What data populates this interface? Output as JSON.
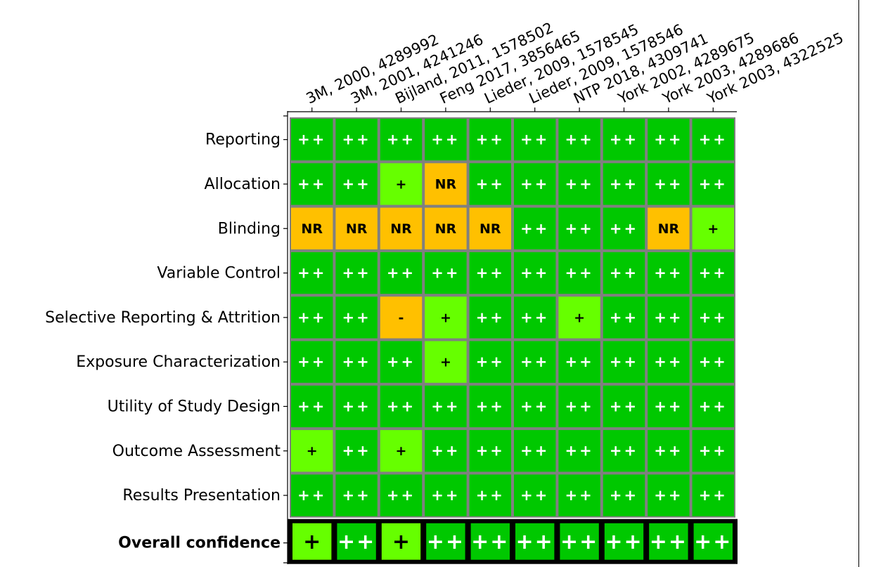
{
  "chart_data": {
    "type": "heatmap",
    "title": "",
    "xlabel": "",
    "ylabel": "",
    "columns": [
      "3M, 2000, 4289992",
      "3M, 2001, 4241246",
      "Bijland, 2011, 1578502",
      "Feng 2017, 3856465",
      "Lieder, 2009, 1578545",
      "Lieder, 2009, 1578546",
      "NTP 2018, 4309741",
      "York 2002, 4289675",
      "York 2003, 4289686",
      "York 2003, 4322525"
    ],
    "rows": [
      "Reporting",
      "Allocation",
      "Blinding",
      "Variable Control",
      "Selective Reporting & Attrition",
      "Exposure Characterization",
      "Utility of Study Design",
      "Outcome Assessment",
      "Results Presentation"
    ],
    "values": [
      [
        "++",
        "++",
        "++",
        "++",
        "++",
        "++",
        "++",
        "++",
        "++",
        "++"
      ],
      [
        "++",
        "++",
        "+",
        "NR",
        "++",
        "++",
        "++",
        "++",
        "++",
        "++"
      ],
      [
        "NR",
        "NR",
        "NR",
        "NR",
        "NR",
        "++",
        "++",
        "++",
        "NR",
        "+"
      ],
      [
        "++",
        "++",
        "++",
        "++",
        "++",
        "++",
        "++",
        "++",
        "++",
        "++"
      ],
      [
        "++",
        "++",
        "-",
        "+",
        "++",
        "++",
        "+",
        "++",
        "++",
        "++"
      ],
      [
        "++",
        "++",
        "++",
        "+",
        "++",
        "++",
        "++",
        "++",
        "++",
        "++"
      ],
      [
        "++",
        "++",
        "++",
        "++",
        "++",
        "++",
        "++",
        "++",
        "++",
        "++"
      ],
      [
        "+",
        "++",
        "+",
        "++",
        "++",
        "++",
        "++",
        "++",
        "++",
        "++"
      ],
      [
        "++",
        "++",
        "++",
        "++",
        "++",
        "++",
        "++",
        "++",
        "++",
        "++"
      ]
    ],
    "overall": {
      "label": "Overall confidence",
      "values": [
        "+",
        "++",
        "+",
        "++",
        "++",
        "++",
        "++",
        "++",
        "++",
        "++"
      ]
    },
    "colors": {
      "++": "#00c800",
      "+": "#66ff00",
      "-": "#ffc000",
      "NR": "#ffc000",
      "grid": "#808080",
      "overall_border": "#000000",
      "text_light": "#ffffff",
      "text_dark": "#000000"
    }
  }
}
